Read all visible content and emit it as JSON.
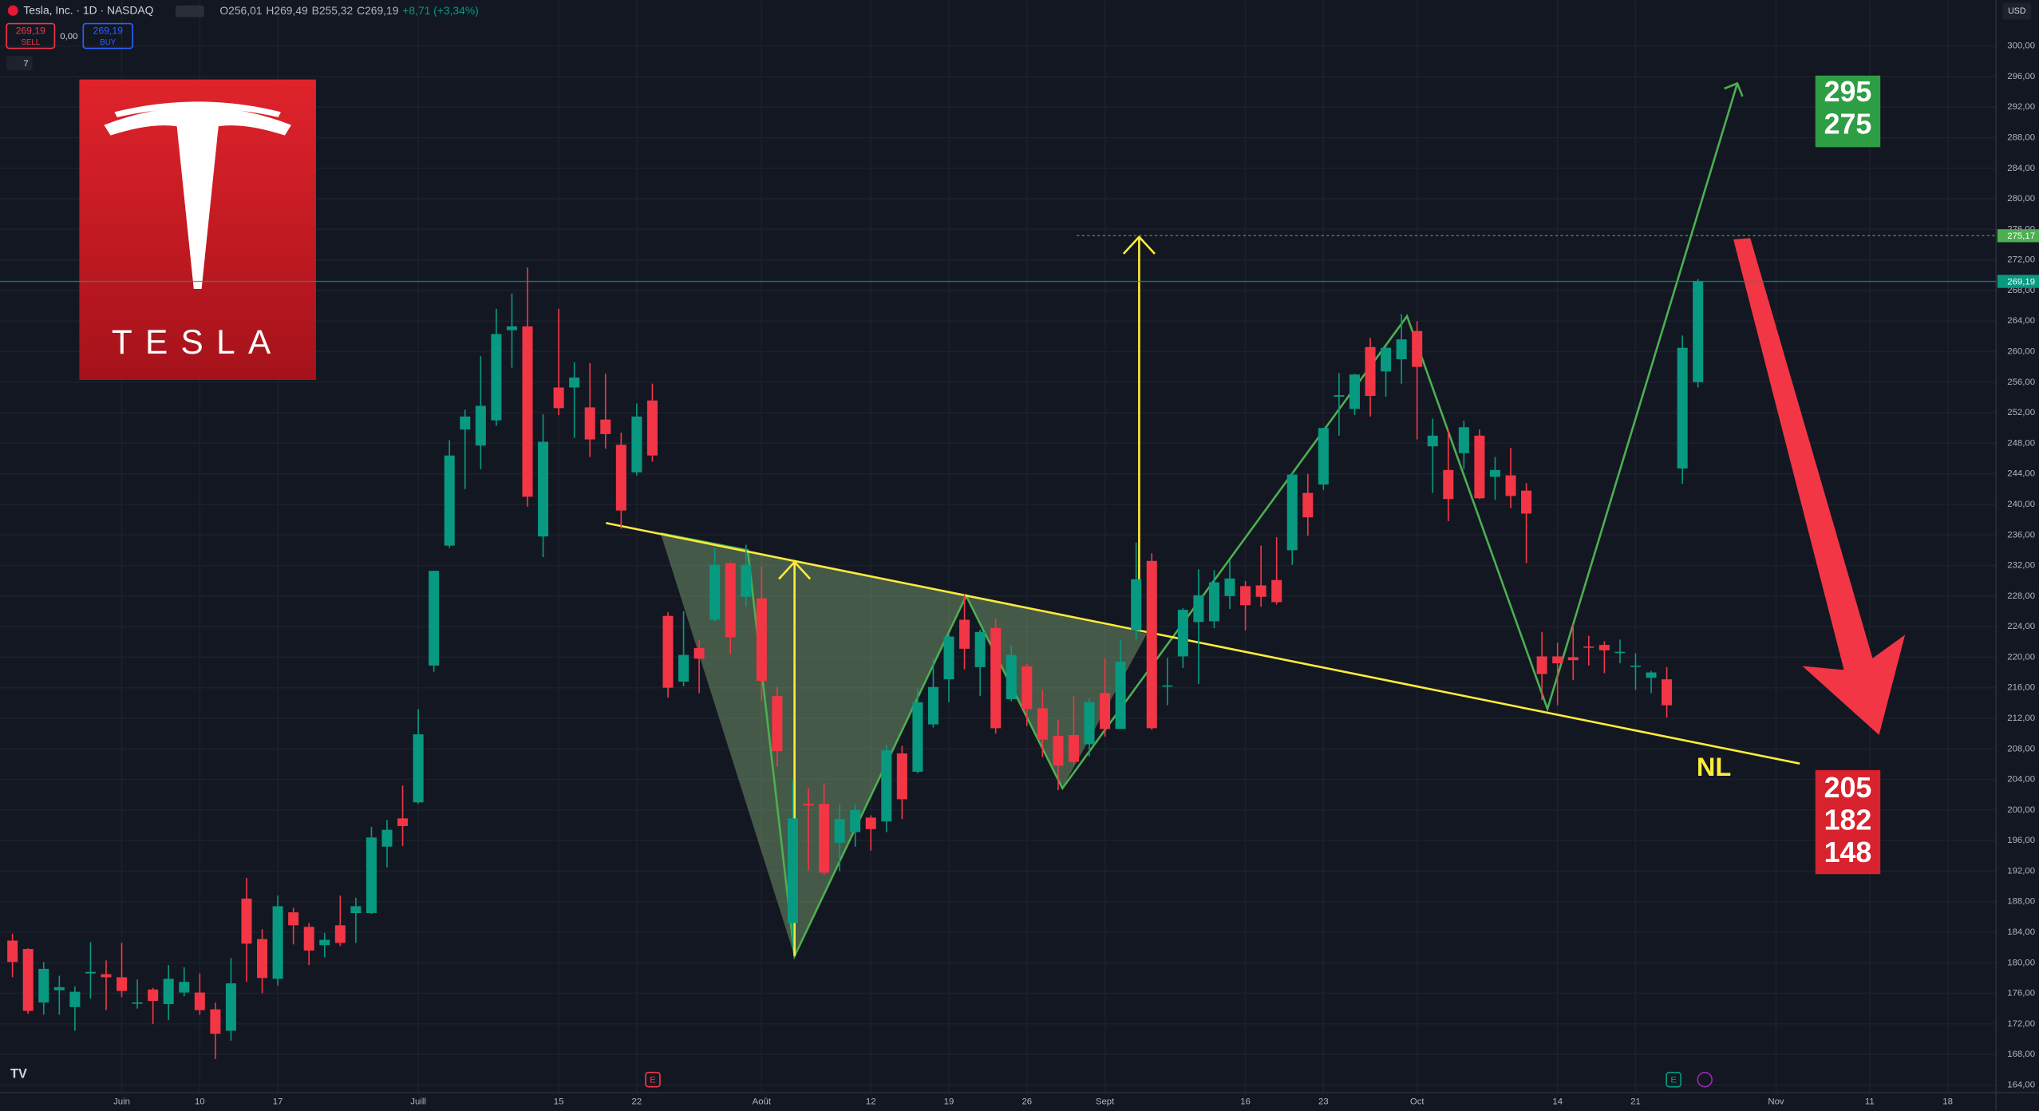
{
  "chart_data": {
    "type": "candlestick",
    "header": {
      "symbol": "Tesla, Inc. · 1D · NASDAQ",
      "ohlc": [
        "O256,01",
        "H269,49",
        "B255,32",
        "C269,19",
        "+8,71 (+3,34%)"
      ],
      "sell_price": "269,19",
      "sell": "SELL",
      "spread": "0,00",
      "buy_price": "269,19",
      "buy": "BUY",
      "indicators": "7",
      "currency": "USD"
    },
    "logo_text": "TESLA",
    "up_color": "#089981",
    "down_color": "#f23645",
    "series": {
      "open": [
        182.9,
        181.8,
        174.8,
        176.4,
        174.2,
        178.6,
        178.5,
        178.1,
        174.8,
        176.5,
        174.6,
        176.1,
        176.1,
        173.9,
        171.1,
        188.4,
        183.1,
        177.9,
        186.6,
        184.7,
        182.3,
        184.9,
        186.5,
        186.5,
        195.2,
        198.9,
        201.0,
        218.9,
        234.6,
        249.8,
        247.7,
        251.0,
        262.8,
        263.3,
        235.8,
        255.3,
        255.3,
        252.7,
        251.1,
        247.8,
        244.2,
        253.6,
        225.4,
        216.8,
        221.2,
        224.9,
        232.3,
        227.9,
        227.7,
        214.9,
        185.2,
        200.8,
        200.8,
        195.7,
        197.1,
        199.0,
        198.5,
        207.4,
        205.0,
        211.2,
        217.1,
        224.9,
        218.7,
        223.8,
        214.5,
        218.8,
        213.3,
        209.7,
        209.8,
        208.6,
        215.3,
        210.6,
        223.5,
        232.6,
        216.2,
        220.1,
        224.6,
        224.7,
        228.0,
        229.3,
        229.4,
        230.1,
        234.0,
        241.5,
        242.6,
        254.1,
        252.5,
        260.6,
        257.4,
        259.0,
        262.7,
        247.6,
        244.5,
        246.7,
        249.0,
        243.6,
        243.8,
        241.8,
        220.1,
        220.1,
        220.0,
        221.4,
        221.6,
        220.7,
        218.9,
        217.3,
        217.1,
        244.7,
        256.0
      ],
      "high": [
        183.8,
        181.9,
        180.1,
        178.3,
        176.9,
        182.7,
        180.3,
        182.6,
        177.8,
        176.7,
        179.7,
        179.4,
        178.6,
        174.8,
        180.6,
        191.1,
        184.4,
        188.8,
        187.2,
        185.2,
        183.9,
        188.8,
        188.5,
        197.8,
        198.7,
        203.2,
        213.2,
        231.3,
        248.4,
        252.4,
        259.4,
        265.6,
        267.6,
        271.0,
        251.8,
        265.6,
        258.6,
        258.5,
        257.1,
        249.4,
        253.2,
        255.8,
        225.9,
        226.0,
        222.3,
        234.3,
        232.4,
        234.7,
        231.9,
        216.1,
        203.9,
        202.9,
        203.5,
        200.7,
        200.7,
        199.3,
        208.5,
        208.4,
        215.9,
        219.8,
        222.98,
        228.2,
        223.6,
        225.0,
        221.5,
        219.1,
        215.7,
        211.8,
        214.9,
        214.6,
        219.9,
        222.2,
        235.0,
        233.6,
        219.9,
        226.4,
        231.5,
        231.4,
        232.7,
        229.96,
        234.6,
        235.7,
        244.2,
        243.99,
        250.0,
        257.2,
        257.1,
        261.8,
        260.7,
        264.9,
        263.98,
        251.2,
        249.8,
        250.96,
        249.8,
        246.2,
        247.4,
        242.8,
        223.3,
        221.9,
        224.3,
        222.8,
        222.1,
        222.3,
        220.5,
        218.2,
        218.7,
        262.1,
        269.49
      ],
      "low": [
        178.1,
        173.3,
        173.2,
        173.2,
        171.1,
        175.3,
        173.8,
        175.5,
        174.0,
        172.0,
        172.5,
        175.6,
        173.2,
        167.4,
        169.8,
        177.5,
        176.0,
        177.0,
        182.4,
        179.7,
        180.7,
        182.2,
        182.6,
        186.4,
        192.5,
        195.3,
        200.8,
        218.1,
        234.3,
        242.0,
        244.6,
        250.3,
        257.9,
        239.7,
        233.1,
        251.7,
        248.7,
        246.2,
        247.3,
        236.8,
        243.8,
        245.6,
        214.7,
        216.2,
        215.3,
        224.7,
        220.4,
        226.6,
        214.3,
        205.7,
        182.0,
        192.1,
        191.5,
        192.0,
        195.2,
        194.7,
        197.1,
        198.8,
        204.8,
        210.8,
        214.1,
        218.4,
        214.9,
        210.0,
        214.2,
        211.0,
        206.9,
        202.6,
        205.97,
        207.0,
        209.6,
        210.6,
        222.3,
        210.5,
        213.7,
        218.6,
        216.5,
        223.8,
        226.3,
        223.5,
        226.6,
        226.9,
        232.1,
        235.9,
        241.9,
        249.0,
        251.7,
        251.5,
        254.1,
        255.8,
        248.5,
        241.5,
        237.8,
        244.6,
        240.7,
        240.6,
        239.5,
        232.3,
        214.4,
        213.7,
        217.0,
        218.9,
        217.9,
        219.2,
        215.7,
        215.3,
        212.1,
        242.7,
        255.3
      ],
      "close": [
        180.1,
        173.7,
        179.2,
        176.8,
        176.2,
        178.8,
        178.1,
        176.3,
        174.8,
        175.0,
        177.9,
        177.5,
        173.8,
        170.7,
        177.3,
        182.5,
        178.0,
        187.4,
        184.9,
        181.6,
        183.0,
        182.6,
        187.4,
        196.4,
        197.4,
        197.9,
        209.9,
        231.3,
        246.4,
        251.5,
        252.9,
        262.3,
        263.3,
        241.0,
        248.2,
        252.6,
        256.6,
        248.5,
        249.2,
        239.2,
        251.5,
        246.4,
        216.0,
        220.3,
        219.8,
        232.1,
        222.6,
        232.1,
        216.9,
        207.7,
        198.9,
        200.6,
        191.8,
        198.8,
        200.0,
        197.5,
        207.8,
        201.4,
        214.1,
        216.1,
        222.7,
        221.1,
        223.3,
        210.7,
        220.3,
        213.2,
        209.2,
        205.8,
        206.3,
        214.1,
        210.6,
        219.4,
        230.2,
        210.7,
        216.3,
        226.2,
        228.1,
        229.8,
        230.3,
        226.8,
        227.9,
        227.2,
        243.9,
        238.3,
        250.0,
        254.3,
        257.0,
        254.2,
        260.5,
        261.6,
        258.0,
        249.0,
        240.7,
        250.1,
        240.8,
        244.5,
        241.1,
        238.8,
        217.8,
        219.2,
        219.6,
        221.3,
        220.9,
        220.7,
        218.9,
        218.0,
        213.7,
        260.5,
        269.2
      ]
    },
    "xlim": [
      -0.8,
      127.1
    ],
    "xticks": [
      {
        "value": 7,
        "label": "Juin"
      },
      {
        "value": 12,
        "label": "10"
      },
      {
        "value": 17,
        "label": "17"
      },
      {
        "value": 26,
        "label": "Juill"
      },
      {
        "value": 35,
        "label": "15"
      },
      {
        "value": 40,
        "label": "22"
      },
      {
        "value": 48,
        "label": "Août"
      },
      {
        "value": 55,
        "label": "12"
      },
      {
        "value": 60,
        "label": "19"
      },
      {
        "value": 65,
        "label": "26"
      },
      {
        "value": 70,
        "label": "Sept"
      },
      {
        "value": 79,
        "label": "16"
      },
      {
        "value": 84,
        "label": "23"
      },
      {
        "value": 90,
        "label": "Oct"
      },
      {
        "value": 99,
        "label": "14"
      },
      {
        "value": 104,
        "label": "21"
      },
      {
        "value": 113,
        "label": "Nov"
      },
      {
        "value": 119,
        "label": "11"
      },
      {
        "value": 124,
        "label": "18"
      }
    ],
    "ylim": [
      163,
      306
    ],
    "yticks": [
      {
        "value": 164,
        "label": "164,00"
      },
      {
        "value": 168,
        "label": "168,00"
      },
      {
        "value": 172,
        "label": "172,00"
      },
      {
        "value": 176,
        "label": "176,00"
      },
      {
        "value": 180,
        "label": "180,00"
      },
      {
        "value": 184,
        "label": "184,00"
      },
      {
        "value": 188,
        "label": "188,00"
      },
      {
        "value": 192,
        "label": "192,00"
      },
      {
        "value": 196,
        "label": "196,00"
      },
      {
        "value": 200,
        "label": "200,00"
      },
      {
        "value": 204,
        "label": "204,00"
      },
      {
        "value": 208,
        "label": "208,00"
      },
      {
        "value": 212,
        "label": "212,00"
      },
      {
        "value": 216,
        "label": "216,00"
      },
      {
        "value": 220,
        "label": "220,00"
      },
      {
        "value": 224,
        "label": "224,00"
      },
      {
        "value": 228,
        "label": "228,00"
      },
      {
        "value": 232,
        "label": "232,00"
      },
      {
        "value": 236,
        "label": "236,00"
      },
      {
        "value": 240,
        "label": "240,00"
      },
      {
        "value": 244,
        "label": "244,00"
      },
      {
        "value": 248,
        "label": "248,00"
      },
      {
        "value": 252,
        "label": "252,00"
      },
      {
        "value": 256,
        "label": "256,00"
      },
      {
        "value": 260,
        "label": "260,00"
      },
      {
        "value": 264,
        "label": "264,00"
      },
      {
        "value": 268,
        "label": "268,00"
      },
      {
        "value": 272,
        "label": "272,00"
      },
      {
        "value": 276,
        "label": "276,00"
      },
      {
        "value": 280,
        "label": "280,00"
      },
      {
        "value": 284,
        "label": "284,00"
      },
      {
        "value": 288,
        "label": "288,00"
      },
      {
        "value": 292,
        "label": "292,00"
      },
      {
        "value": 296,
        "label": "296,00"
      },
      {
        "value": 300,
        "label": "300,00"
      }
    ],
    "grid": true,
    "price_lines": [
      {
        "value": 275.17,
        "label": "275,17",
        "color": "#4caf50",
        "dashed": true
      },
      {
        "value": 269.19,
        "label": "269,19",
        "color": "#089981",
        "dashed": false
      }
    ],
    "targets_up": [
      295,
      275
    ],
    "targets_down": [
      205,
      182,
      148
    ],
    "neckline_label": "NL",
    "events": [
      "E",
      "E"
    ]
  }
}
